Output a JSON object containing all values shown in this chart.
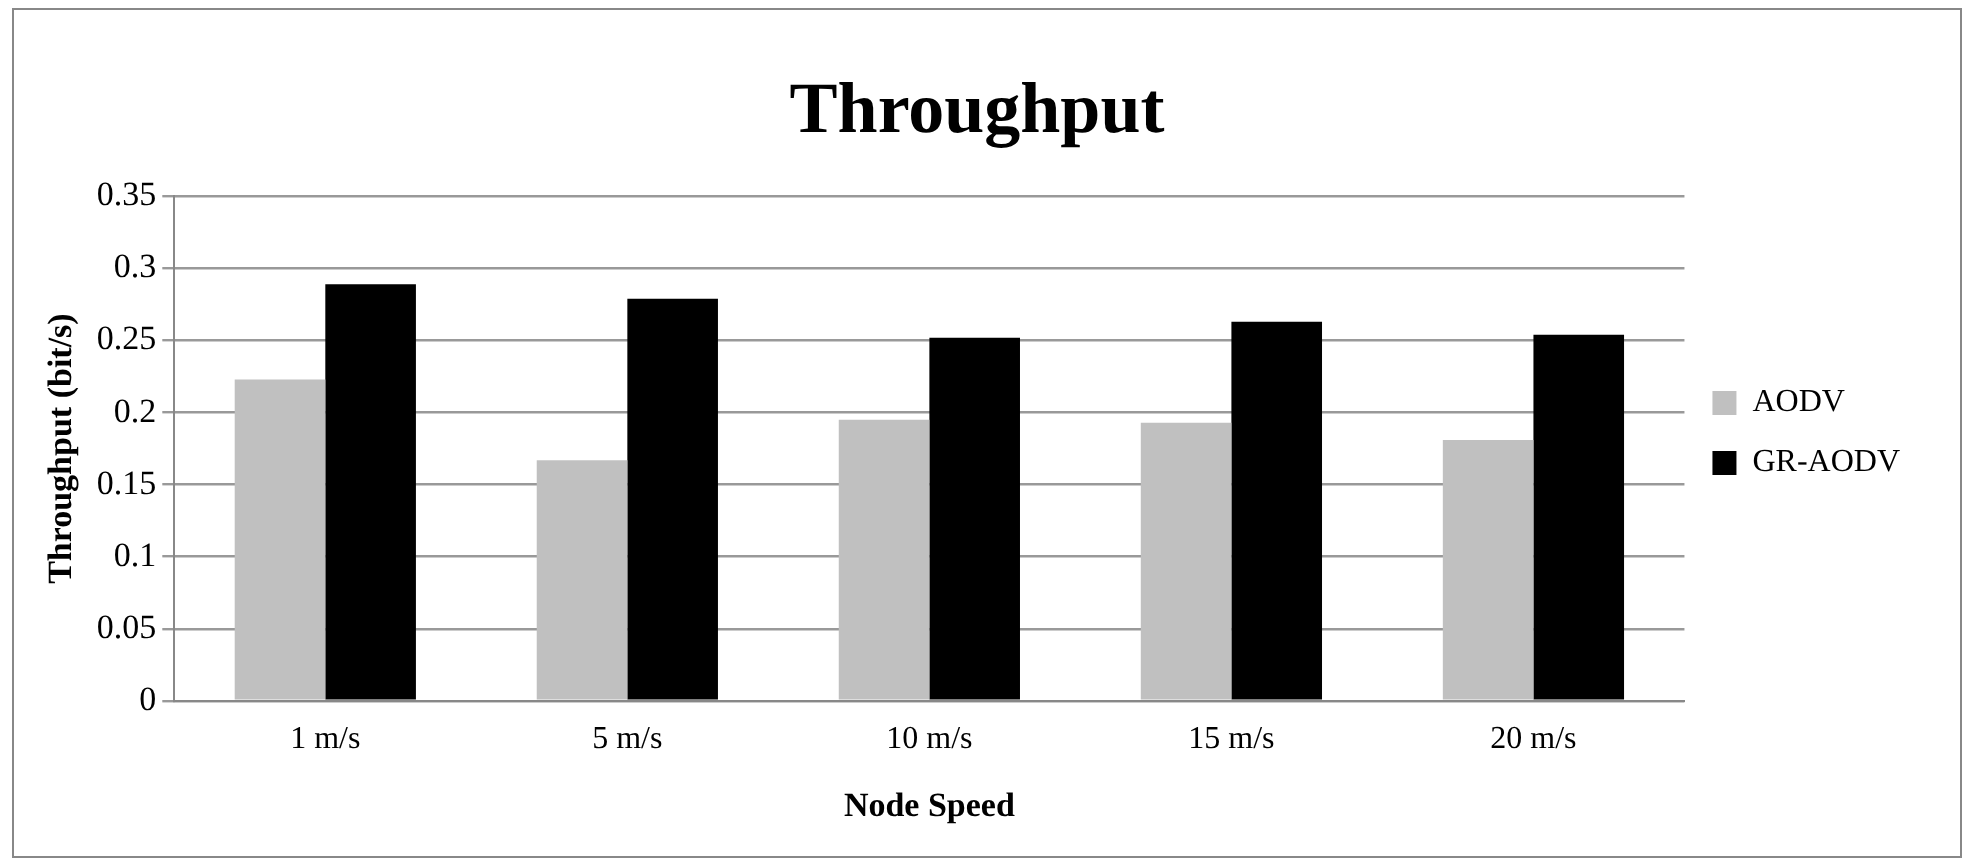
{
  "chart_data": {
    "type": "bar",
    "title": "Throughput",
    "xlabel": "Node Speed",
    "ylabel": "Throughput (bit/s)",
    "categories": [
      "1 m/s",
      "5 m/s",
      "10 m/s",
      "15 m/s",
      "20 m/s"
    ],
    "series": [
      {
        "name": "AODV",
        "color": "#c0c0c0",
        "values": [
          0.223,
          0.167,
          0.195,
          0.193,
          0.181
        ]
      },
      {
        "name": "GR-AODV",
        "color": "#000000",
        "values": [
          0.289,
          0.279,
          0.252,
          0.263,
          0.254
        ]
      }
    ],
    "ylim": [
      0,
      0.35
    ],
    "yticks": [
      0,
      0.05,
      0.1,
      0.15,
      0.2,
      0.25,
      0.3,
      0.35
    ],
    "grid": "y",
    "legend": "right"
  }
}
